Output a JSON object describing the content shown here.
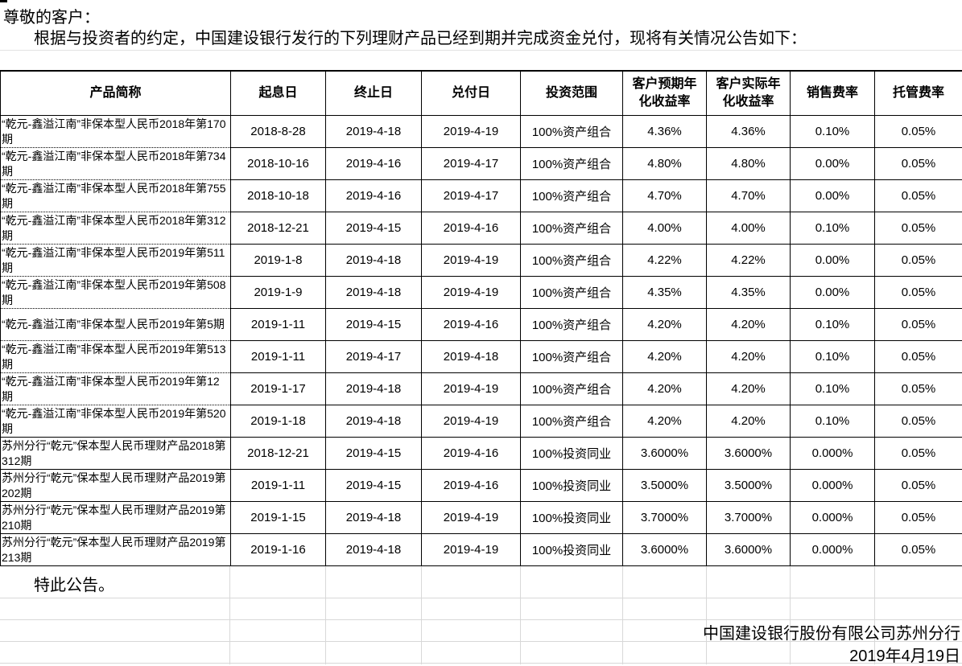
{
  "intro": {
    "salutation": "尊敬的客户：",
    "body": "根据与投资者的约定，中国建设银行发行的下列理财产品已经到期并完成资金兑付，现将有关情况公告如下："
  },
  "table": {
    "headers": [
      "产品简称",
      "起息日",
      "终止日",
      "兑付日",
      "投资范围",
      "客户预期年\n化收益率",
      "客户实际年\n化收益率",
      "销售费率",
      "托管费率"
    ],
    "rows": [
      [
        "“乾元-鑫溢江南”非保本型人民币2018年第170期",
        "2018-8-28",
        "2019-4-18",
        "2019-4-19",
        "100%资产组合",
        "4.36%",
        "4.36%",
        "0.10%",
        "0.05%"
      ],
      [
        "“乾元-鑫溢江南”非保本型人民币2018年第734期",
        "2018-10-16",
        "2019-4-16",
        "2019-4-17",
        "100%资产组合",
        "4.80%",
        "4.80%",
        "0.00%",
        "0.05%"
      ],
      [
        "“乾元-鑫溢江南”非保本型人民币2018年第755期",
        "2018-10-18",
        "2019-4-16",
        "2019-4-17",
        "100%资产组合",
        "4.70%",
        "4.70%",
        "0.00%",
        "0.05%"
      ],
      [
        "“乾元-鑫溢江南”非保本型人民币2018年第312期",
        "2018-12-21",
        "2019-4-15",
        "2019-4-16",
        "100%资产组合",
        "4.00%",
        "4.00%",
        "0.10%",
        "0.05%"
      ],
      [
        "“乾元-鑫溢江南”非保本型人民币2019年第511期",
        "2019-1-8",
        "2019-4-18",
        "2019-4-19",
        "100%资产组合",
        "4.22%",
        "4.22%",
        "0.00%",
        "0.05%"
      ],
      [
        "“乾元-鑫溢江南”非保本型人民币2019年第508期",
        "2019-1-9",
        "2019-4-18",
        "2019-4-19",
        "100%资产组合",
        "4.35%",
        "4.35%",
        "0.00%",
        "0.05%"
      ],
      [
        "“乾元-鑫溢江南”非保本型人民币2019年第5期",
        "2019-1-11",
        "2019-4-15",
        "2019-4-16",
        "100%资产组合",
        "4.20%",
        "4.20%",
        "0.10%",
        "0.05%"
      ],
      [
        "“乾元-鑫溢江南”非保本型人民币2019年第513期",
        "2019-1-11",
        "2019-4-17",
        "2019-4-18",
        "100%资产组合",
        "4.20%",
        "4.20%",
        "0.10%",
        "0.05%"
      ],
      [
        "“乾元-鑫溢江南”非保本型人民币2019年第12期",
        "2019-1-17",
        "2019-4-18",
        "2019-4-19",
        "100%资产组合",
        "4.20%",
        "4.20%",
        "0.10%",
        "0.05%"
      ],
      [
        "“乾元-鑫溢江南”非保本型人民币2019年第520期",
        "2019-1-18",
        "2019-4-18",
        "2019-4-19",
        "100%资产组合",
        "4.20%",
        "4.20%",
        "0.10%",
        "0.05%"
      ],
      [
        "苏州分行“乾元”保本型人民币理财产品2018第312期",
        "2018-12-21",
        "2019-4-15",
        "2019-4-16",
        "100%投资同业",
        "3.6000%",
        "3.6000%",
        "0.000%",
        "0.05%"
      ],
      [
        "苏州分行“乾元”保本型人民币理财产品2019第202期",
        "2019-1-11",
        "2019-4-15",
        "2019-4-16",
        "100%投资同业",
        "3.5000%",
        "3.5000%",
        "0.000%",
        "0.05%"
      ],
      [
        "苏州分行“乾元”保本型人民币理财产品2019第210期",
        "2019-1-15",
        "2019-4-18",
        "2019-4-19",
        "100%投资同业",
        "3.7000%",
        "3.7000%",
        "0.000%",
        "0.05%"
      ],
      [
        "苏州分行“乾元”保本型人民币理财产品2019第213期",
        "2019-1-16",
        "2019-4-18",
        "2019-4-19",
        "100%投资同业",
        "3.6000%",
        "3.6000%",
        "0.000%",
        "0.05%"
      ]
    ],
    "dotted_separator_rows": 9
  },
  "closing": "特此公告。",
  "footer": {
    "issuer": "中国建设银行股份有限公司苏州分行",
    "date": "2019年4月19日"
  },
  "colors": {
    "text": "#000000",
    "border": "#000000",
    "faint_gridline": "#d8d8d8",
    "background": "#ffffff"
  }
}
